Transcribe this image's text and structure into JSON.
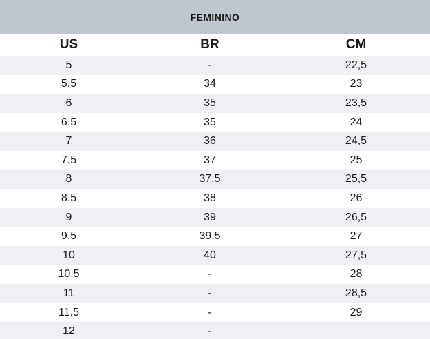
{
  "chart_data": {
    "type": "table",
    "title": "FEMININO",
    "columns": [
      "US",
      "BR",
      "CM"
    ],
    "rows": [
      [
        "5",
        "-",
        "22,5"
      ],
      [
        "5.5",
        "34",
        "23"
      ],
      [
        "6",
        "35",
        "23,5"
      ],
      [
        "6.5",
        "35",
        "24"
      ],
      [
        "7",
        "36",
        "24,5"
      ],
      [
        "7.5",
        "37",
        "25"
      ],
      [
        "8",
        "37.5",
        "25,5"
      ],
      [
        "8.5",
        "38",
        "26"
      ],
      [
        "9",
        "39",
        "26,5"
      ],
      [
        "9.5",
        "39.5",
        "27"
      ],
      [
        "10",
        "40",
        "27,5"
      ],
      [
        "10.5",
        "-",
        "28"
      ],
      [
        "11",
        "-",
        "28,5"
      ],
      [
        "11.5",
        "-",
        "29"
      ],
      [
        "12",
        "-",
        ""
      ]
    ],
    "layout": {
      "striped": true,
      "first_data_row_shaded": true,
      "last_row_clipped": true
    }
  },
  "colors": {
    "title_band_bg": "#bfc6cd",
    "row_alt_bg": "#eff0f4",
    "row_bg": "#ffffff",
    "text": "#1b1b1b"
  }
}
